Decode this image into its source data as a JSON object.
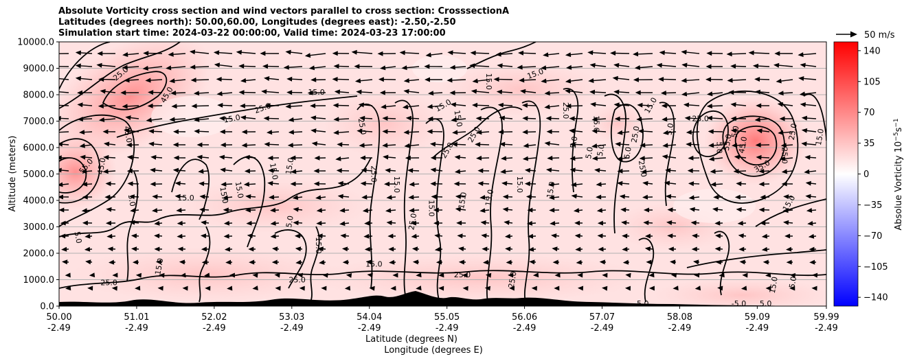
{
  "chart_data": {
    "type": "heatmap",
    "title_lines": [
      "Absolute Vorticity cross section and wind vectors parallel to cross section: CrosssectionA",
      "Latitudes (degrees north): 50.00,60.00, Longitudes (degrees east): -2.50,-2.50",
      "Simulation start time: 2024-03-22 00:00:00, Valid time: 2024-03-23 17:00:00"
    ],
    "ylabel": "Altitude (meters)",
    "xlabel_1": "Latitude (degrees N)",
    "xlabel_2": "Longitude (degrees E)",
    "ylim": [
      0,
      10000
    ],
    "yticks": [
      "0.0",
      "1000.0",
      "2000.0",
      "3000.0",
      "4000.0",
      "5000.0",
      "6000.0",
      "7000.0",
      "8000.0",
      "9000.0",
      "10000.0"
    ],
    "xlim": [
      50.0,
      59.99
    ],
    "xticks_lat": [
      "50.00",
      "51.01",
      "52.02",
      "53.03",
      "54.04",
      "55.05",
      "56.06",
      "57.07",
      "58.08",
      "59.09",
      "59.99"
    ],
    "xticks_lon": [
      "-2.49",
      "-2.49",
      "-2.49",
      "-2.49",
      "-2.49",
      "-2.49",
      "-2.49",
      "-2.49",
      "-2.49",
      "-2.49",
      "-2.49"
    ],
    "grid": "horizontal",
    "colorbar": {
      "label": "Absolue Vorticity 10^-5 s^-1",
      "label_main": "Absolue Vorticity 10",
      "label_sup1": "−5",
      "label_mid": "s",
      "label_sup2": "−1",
      "range": [
        -150,
        150
      ],
      "ticks": [
        "140",
        "105",
        "70",
        "35",
        "0",
        "−35",
        "−70",
        "−105",
        "−140"
      ],
      "colors": {
        "low": "#0000ff",
        "mid": "#ffffff",
        "high": "#ff0000"
      }
    },
    "quiver_key": "50 m/s",
    "contour_labels": [
      {
        "text": "25.0",
        "x": 50.8,
        "y": 8800,
        "rot": -40
      },
      {
        "text": "45.0",
        "x": 51.4,
        "y": 8000,
        "rot": -60
      },
      {
        "text": "55.0",
        "x": 50.35,
        "y": 5300,
        "rot": -50
      },
      {
        "text": "45.0",
        "x": 50.55,
        "y": 5300,
        "rot": -80
      },
      {
        "text": "45.0",
        "x": 50.9,
        "y": 6500,
        "rot": 80
      },
      {
        "text": "15.0",
        "x": 52.25,
        "y": 7100,
        "rot": -10
      },
      {
        "text": "25.0",
        "x": 52.65,
        "y": 7500,
        "rot": -20
      },
      {
        "text": "15.0",
        "x": 53.35,
        "y": 8100,
        "rot": 0
      },
      {
        "text": "15.0",
        "x": 51.65,
        "y": 4100,
        "rot": 0
      },
      {
        "text": "15.0",
        "x": 52.15,
        "y": 4200,
        "rot": 80
      },
      {
        "text": "15.0",
        "x": 52.35,
        "y": 4400,
        "rot": 80
      },
      {
        "text": "15.0",
        "x": 53.0,
        "y": 5300,
        "rot": -80
      },
      {
        "text": "15.0",
        "x": 52.8,
        "y": 5100,
        "rot": 80
      },
      {
        "text": "5.0",
        "x": 50.95,
        "y": 4000,
        "rot": 80
      },
      {
        "text": "5.0",
        "x": 50.25,
        "y": 2600,
        "rot": 80
      },
      {
        "text": "5.0",
        "x": 53.0,
        "y": 3200,
        "rot": -80
      },
      {
        "text": "15.0",
        "x": 53.38,
        "y": 2300,
        "rot": 90
      },
      {
        "text": "25.0",
        "x": 54.1,
        "y": 5000,
        "rot": 90
      },
      {
        "text": "25.0",
        "x": 53.95,
        "y": 6800,
        "rot": 80
      },
      {
        "text": "15.0",
        "x": 54.4,
        "y": 4600,
        "rot": 90
      },
      {
        "text": "15.0",
        "x": 55.0,
        "y": 7600,
        "rot": -30
      },
      {
        "text": "15.0",
        "x": 55.2,
        "y": 7100,
        "rot": 80
      },
      {
        "text": "25.0",
        "x": 55.4,
        "y": 6500,
        "rot": -60
      },
      {
        "text": "25.0",
        "x": 55.05,
        "y": 5900,
        "rot": -60
      },
      {
        "text": "15.0",
        "x": 55.25,
        "y": 4000,
        "rot": -80
      },
      {
        "text": "15.0",
        "x": 54.85,
        "y": 3700,
        "rot": 90
      },
      {
        "text": "15.0",
        "x": 55.6,
        "y": 8500,
        "rot": 90
      },
      {
        "text": "15.0",
        "x": 56.2,
        "y": 8800,
        "rot": -20
      },
      {
        "text": "15.0",
        "x": 55.6,
        "y": 4100,
        "rot": -80
      },
      {
        "text": "15.0",
        "x": 56.0,
        "y": 4600,
        "rot": 90
      },
      {
        "text": "25.0",
        "x": 54.6,
        "y": 3200,
        "rot": -80
      },
      {
        "text": "25.0",
        "x": 56.6,
        "y": 7400,
        "rot": 90
      },
      {
        "text": "15.0",
        "x": 56.4,
        "y": 4400,
        "rot": -80
      },
      {
        "text": "5.0",
        "x": 56.7,
        "y": 6200,
        "rot": -80
      },
      {
        "text": "5.0",
        "x": 56.9,
        "y": 5800,
        "rot": -80
      },
      {
        "text": "5.0",
        "x": 57.05,
        "y": 5900,
        "rot": -80
      },
      {
        "text": "5.0",
        "x": 57.4,
        "y": 5800,
        "rot": -80
      },
      {
        "text": "15.0",
        "x": 57.0,
        "y": 6900,
        "rot": 90
      },
      {
        "text": "25.0",
        "x": 57.5,
        "y": 6500,
        "rot": -80
      },
      {
        "text": "15.0",
        "x": 57.7,
        "y": 7600,
        "rot": -60
      },
      {
        "text": "25.0",
        "x": 57.6,
        "y": 5200,
        "rot": 80
      },
      {
        "text": "5.0",
        "x": 57.95,
        "y": 6700,
        "rot": -80
      },
      {
        "text": "25.0",
        "x": 58.35,
        "y": 7100,
        "rot": 0
      },
      {
        "text": "5.0",
        "x": 58.8,
        "y": 6600,
        "rot": -80
      },
      {
        "text": "45.0",
        "x": 58.9,
        "y": 6100,
        "rot": -80
      },
      {
        "text": "55.0",
        "x": 58.7,
        "y": 6200,
        "rot": -80
      },
      {
        "text": "35.0",
        "x": 59.15,
        "y": 5300,
        "rot": -30
      },
      {
        "text": "25.0",
        "x": 59.55,
        "y": 6600,
        "rot": -80
      },
      {
        "text": "15.0",
        "x": 59.9,
        "y": 6400,
        "rot": -80
      },
      {
        "text": "25.0",
        "x": 59.45,
        "y": 5700,
        "rot": 90
      },
      {
        "text": "15.0",
        "x": 59.5,
        "y": 3900,
        "rot": -60
      },
      {
        "text": "5.0",
        "x": 58.6,
        "y": 6000,
        "rot": 90
      },
      {
        "text": "5.0",
        "x": 59.55,
        "y": 900,
        "rot": -80
      },
      {
        "text": "15.0",
        "x": 54.1,
        "y": 1600,
        "rot": 0
      },
      {
        "text": "15.0",
        "x": 59.3,
        "y": 800,
        "rot": -80
      },
      {
        "text": "-5.0",
        "x": 58.85,
        "y": 100,
        "rot": 0
      },
      {
        "text": "5.0",
        "x": 59.2,
        "y": 100,
        "rot": 0
      },
      {
        "text": "5.0",
        "x": 57.6,
        "y": 100,
        "rot": 0
      },
      {
        "text": "25.0",
        "x": 53.1,
        "y": 1000,
        "rot": 0
      },
      {
        "text": "25.0",
        "x": 55.25,
        "y": 1200,
        "rot": 0
      },
      {
        "text": "25.0",
        "x": 55.9,
        "y": 1000,
        "rot": -80
      },
      {
        "text": "15.0",
        "x": 51.3,
        "y": 1500,
        "rot": -80
      },
      {
        "text": "25.0",
        "x": 50.65,
        "y": 900,
        "rot": 0
      }
    ]
  }
}
